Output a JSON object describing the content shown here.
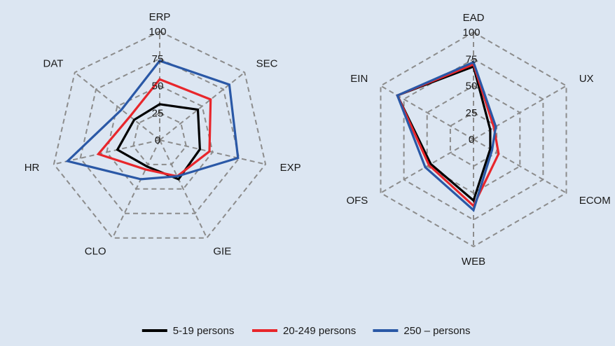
{
  "chart_data": [
    {
      "type": "radar",
      "axes": [
        "ERP",
        "SEC",
        "EXP",
        "GIE",
        "CLO",
        "HR",
        "DAT"
      ],
      "rlim": [
        0,
        100
      ],
      "ticks": [
        "0",
        "25",
        "50",
        "75",
        "100"
      ],
      "grid": true,
      "series": [
        {
          "name": "5-19 persons",
          "color": "#000000",
          "values": [
            33,
            45,
            38,
            40,
            27,
            40,
            30
          ]
        },
        {
          "name": "20-249 persons",
          "color": "#e8262b",
          "values": [
            56,
            60,
            47,
            37,
            30,
            58,
            35
          ]
        },
        {
          "name": "250 – persons",
          "color": "#2a58a6",
          "values": [
            73,
            82,
            74,
            37,
            40,
            87,
            45
          ]
        }
      ]
    },
    {
      "type": "radar",
      "axes": [
        "EAD",
        "UX",
        "ECOM",
        "WEB",
        "OFS",
        "EIN"
      ],
      "rlim": [
        0,
        100
      ],
      "ticks": [
        "0",
        "25",
        "50",
        "75",
        "100"
      ],
      "grid": true,
      "series": [
        {
          "name": "5-19 persons",
          "color": "#000000",
          "values": [
            68,
            18,
            18,
            57,
            46,
            82
          ]
        },
        {
          "name": "20-249 persons",
          "color": "#e8262b",
          "values": [
            70,
            22,
            27,
            62,
            48,
            82
          ]
        },
        {
          "name": "250 – persons",
          "color": "#2a58a6",
          "values": [
            72,
            24,
            20,
            66,
            52,
            82
          ]
        }
      ]
    }
  ],
  "legend": {
    "position": "bottom",
    "items": [
      {
        "label": "5-19 persons",
        "color": "#000000"
      },
      {
        "label": "20-249 persons",
        "color": "#e8262b"
      },
      {
        "label": "250 – persons",
        "color": "#2a58a6"
      }
    ]
  },
  "colors": {
    "background": "#dce6f2",
    "grid": "#8c8c8c"
  }
}
